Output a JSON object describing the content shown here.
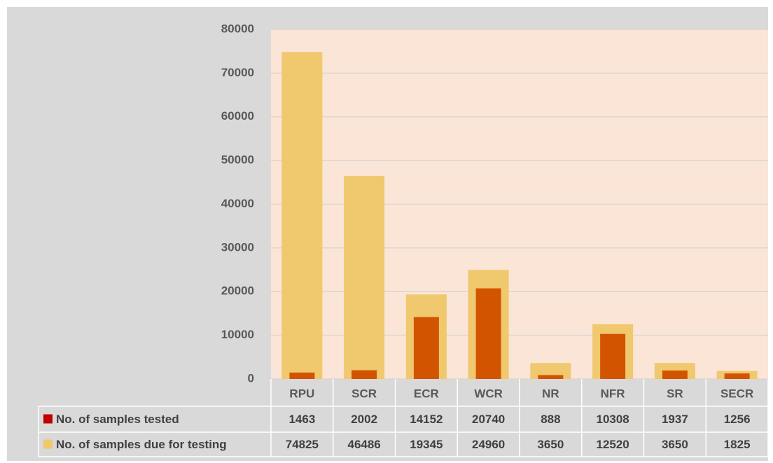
{
  "chart_data": {
    "type": "bar",
    "categories": [
      "RPU",
      "SCR",
      "ECR",
      "WCR",
      "NR",
      "NFR",
      "SR",
      "SECR"
    ],
    "series": [
      {
        "name": "No. of samples tested",
        "color": "#d35400",
        "key_color": "#c00000",
        "values": [
          1463,
          2002,
          14152,
          20740,
          888,
          10308,
          1937,
          1256
        ]
      },
      {
        "name": "No. of samples due for testing",
        "color": "#f0c86e",
        "key_color": "#f0c86e",
        "values": [
          74825,
          46486,
          19345,
          24960,
          3650,
          12520,
          3650,
          1825
        ]
      }
    ],
    "ylim": [
      0,
      80000
    ],
    "yticks": [
      0,
      10000,
      20000,
      30000,
      40000,
      50000,
      60000,
      70000,
      80000
    ],
    "grid": true,
    "data_table": true
  }
}
